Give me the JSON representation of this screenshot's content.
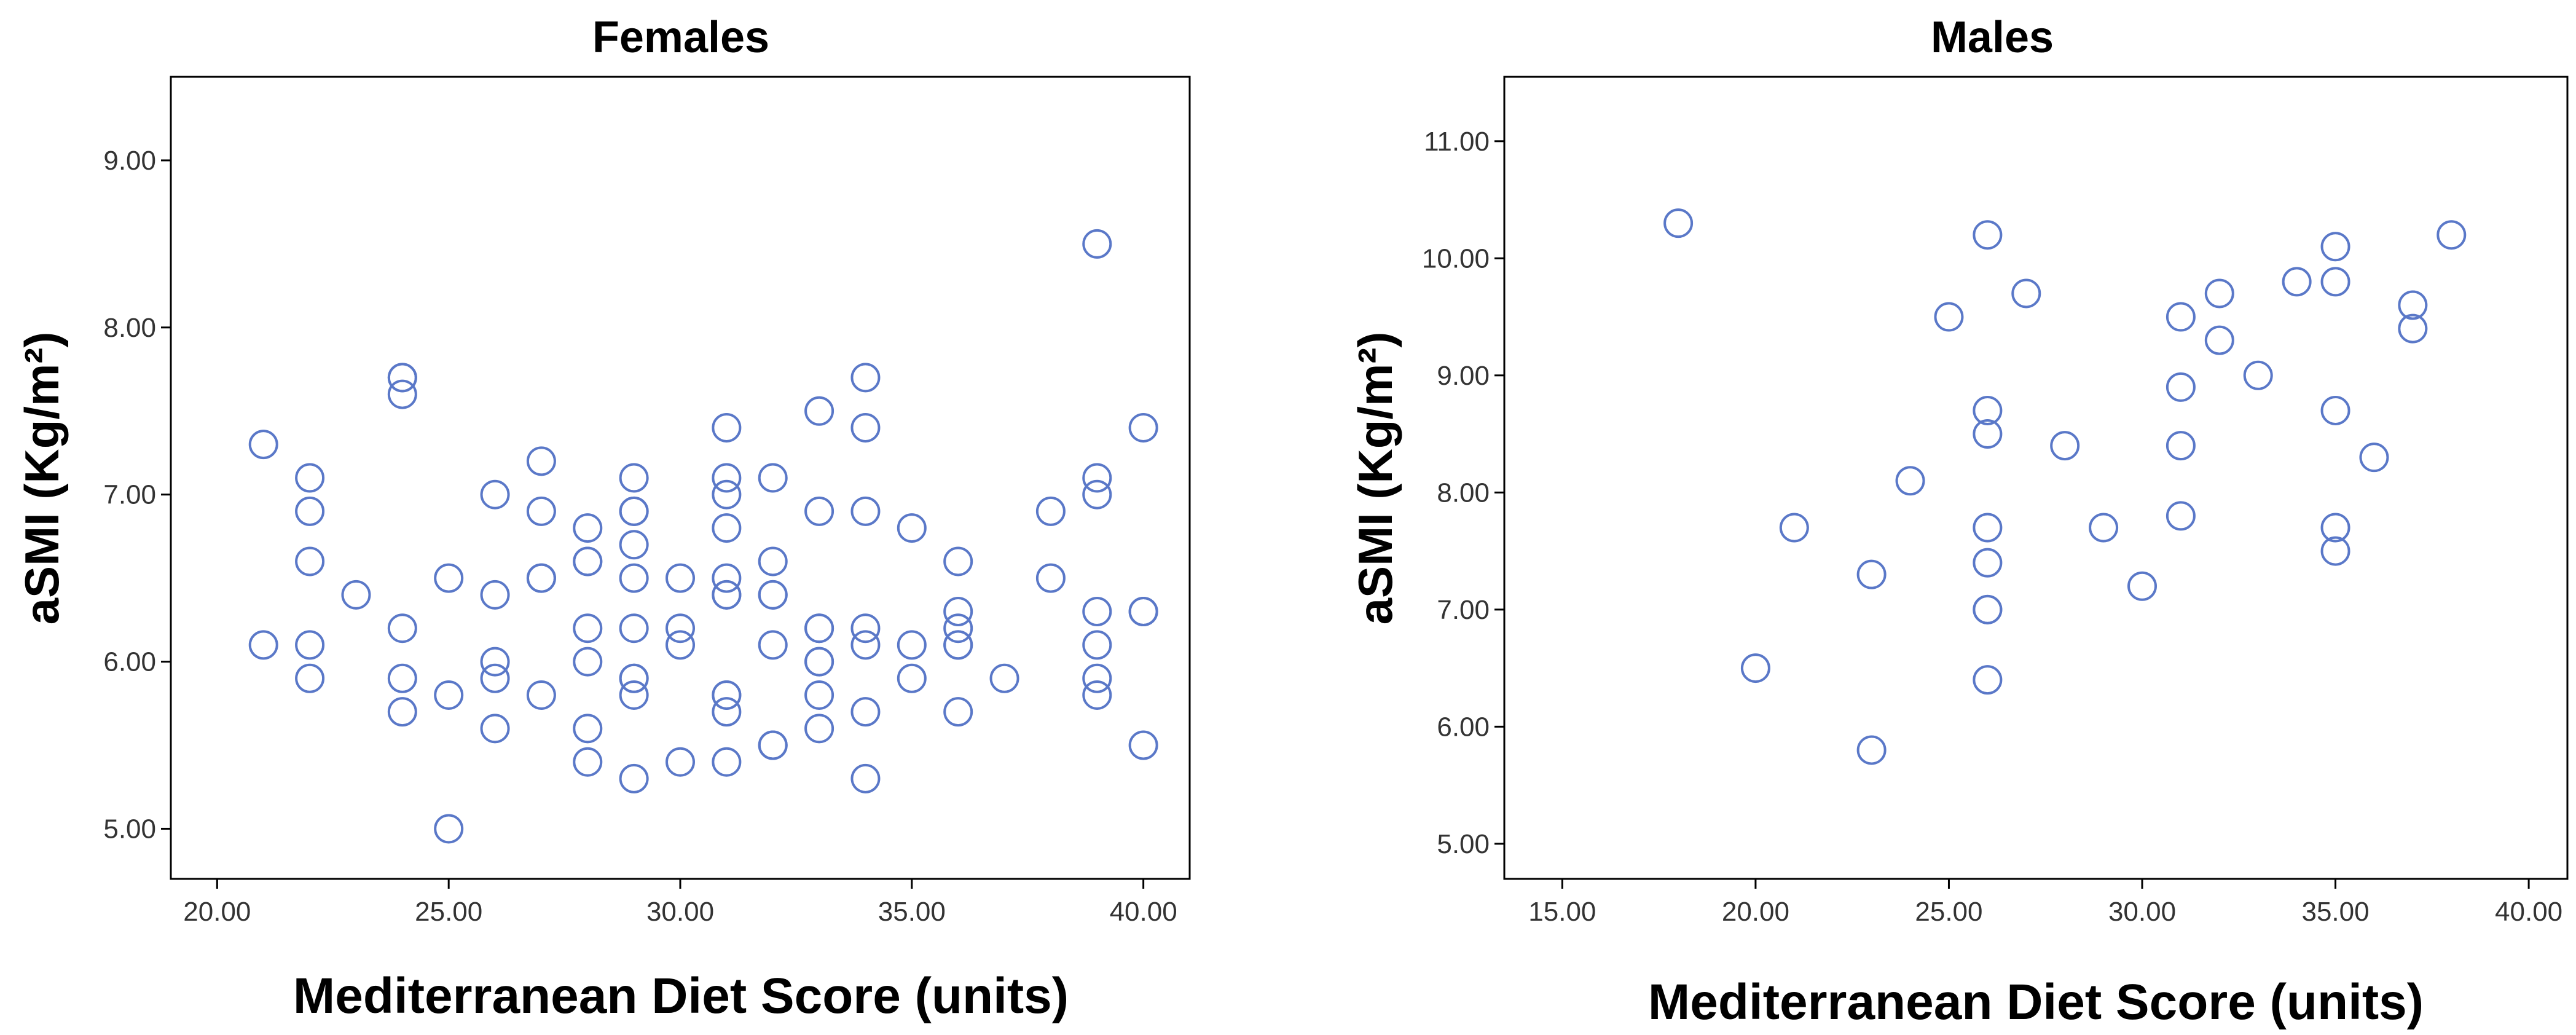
{
  "colors": {
    "marker": "#5a78c8",
    "frame": "#000000",
    "tick_text": "#333333"
  },
  "chart_data": [
    {
      "type": "scatter",
      "title": "Females",
      "xlabel": "Mediterranean Diet Score (units)",
      "ylabel": "aSMI (Kg/m²)",
      "xlim": [
        19.0,
        41.0
      ],
      "ylim": [
        4.7,
        9.5
      ],
      "xticks": [
        20,
        25,
        30,
        35,
        40
      ],
      "yticks": [
        5,
        6,
        7,
        8,
        9
      ],
      "xtick_labels": [
        "20.00",
        "25.00",
        "30.00",
        "35.00",
        "40.00"
      ],
      "ytick_labels": [
        "5.00",
        "6.00",
        "7.00",
        "8.00",
        "9.00"
      ],
      "grid": false,
      "marker": "open-circle",
      "points": [
        [
          21,
          7.3
        ],
        [
          21,
          6.1
        ],
        [
          22,
          7.1
        ],
        [
          22,
          6.9
        ],
        [
          22,
          6.6
        ],
        [
          22,
          6.1
        ],
        [
          22,
          5.9
        ],
        [
          23,
          6.4
        ],
        [
          24,
          7.7
        ],
        [
          24,
          7.7
        ],
        [
          24,
          7.6
        ],
        [
          24,
          6.2
        ],
        [
          24,
          5.9
        ],
        [
          24,
          5.7
        ],
        [
          25,
          6.5
        ],
        [
          25,
          5.8
        ],
        [
          25,
          5.0
        ],
        [
          26,
          7.0
        ],
        [
          26,
          6.4
        ],
        [
          26,
          6.0
        ],
        [
          26,
          5.9
        ],
        [
          26,
          5.6
        ],
        [
          27,
          7.2
        ],
        [
          27,
          6.9
        ],
        [
          27,
          6.5
        ],
        [
          27,
          6.5
        ],
        [
          27,
          5.8
        ],
        [
          28,
          6.8
        ],
        [
          28,
          6.6
        ],
        [
          28,
          6.6
        ],
        [
          28,
          6.2
        ],
        [
          28,
          6.0
        ],
        [
          28,
          5.6
        ],
        [
          28,
          5.4
        ],
        [
          29,
          7.1
        ],
        [
          29,
          6.9
        ],
        [
          29,
          6.9
        ],
        [
          29,
          6.7
        ],
        [
          29,
          6.5
        ],
        [
          29,
          6.2
        ],
        [
          29,
          5.9
        ],
        [
          29,
          5.9
        ],
        [
          29,
          5.8
        ],
        [
          29,
          5.3
        ],
        [
          30,
          6.5
        ],
        [
          30,
          6.2
        ],
        [
          30,
          6.1
        ],
        [
          30,
          5.4
        ],
        [
          31,
          7.4
        ],
        [
          31,
          7.1
        ],
        [
          31,
          7.0
        ],
        [
          31,
          6.8
        ],
        [
          31,
          6.5
        ],
        [
          31,
          6.4
        ],
        [
          31,
          6.4
        ],
        [
          31,
          5.8
        ],
        [
          31,
          5.8
        ],
        [
          31,
          5.7
        ],
        [
          31,
          5.4
        ],
        [
          32,
          7.1
        ],
        [
          32,
          6.6
        ],
        [
          32,
          6.4
        ],
        [
          32,
          6.4
        ],
        [
          32,
          6.1
        ],
        [
          32,
          5.5
        ],
        [
          32,
          5.5
        ],
        [
          33,
          7.5
        ],
        [
          33,
          6.9
        ],
        [
          33,
          6.2
        ],
        [
          33,
          6.2
        ],
        [
          33,
          6.0
        ],
        [
          33,
          6.0
        ],
        [
          33,
          5.8
        ],
        [
          33,
          5.6
        ],
        [
          34,
          7.7
        ],
        [
          34,
          7.4
        ],
        [
          34,
          6.9
        ],
        [
          34,
          6.2
        ],
        [
          34,
          6.1
        ],
        [
          34,
          5.7
        ],
        [
          34,
          5.3
        ],
        [
          35,
          6.8
        ],
        [
          35,
          6.1
        ],
        [
          35,
          5.9
        ],
        [
          36,
          6.6
        ],
        [
          36,
          6.3
        ],
        [
          36,
          6.2
        ],
        [
          36,
          6.1
        ],
        [
          36,
          6.1
        ],
        [
          36,
          5.7
        ],
        [
          37,
          5.9
        ],
        [
          38,
          6.9
        ],
        [
          38,
          6.5
        ],
        [
          39,
          8.5
        ],
        [
          39,
          7.1
        ],
        [
          39,
          7.0
        ],
        [
          39,
          6.3
        ],
        [
          39,
          6.1
        ],
        [
          39,
          5.9
        ],
        [
          39,
          5.8
        ],
        [
          40,
          7.4
        ],
        [
          40,
          6.3
        ],
        [
          40,
          6.3
        ],
        [
          40,
          5.5
        ]
      ]
    },
    {
      "type": "scatter",
      "title": "Males",
      "xlabel": "Mediterranean Diet Score (units)",
      "ylabel": "aSMI (Kg/m²)",
      "xlim": [
        13.5,
        41.0
      ],
      "ylim": [
        4.7,
        11.55
      ],
      "xticks": [
        15,
        20,
        25,
        30,
        35,
        40
      ],
      "yticks": [
        5,
        6,
        7,
        8,
        9,
        10,
        11
      ],
      "xtick_labels": [
        "15.00",
        "20.00",
        "25.00",
        "30.00",
        "35.00",
        "40.00"
      ],
      "ytick_labels": [
        "5.00",
        "6.00",
        "7.00",
        "8.00",
        "9.00",
        "10.00",
        "11.00"
      ],
      "grid": false,
      "marker": "open-circle",
      "points": [
        [
          18,
          10.3
        ],
        [
          20,
          6.5
        ],
        [
          21,
          7.7
        ],
        [
          23,
          7.3
        ],
        [
          23,
          5.8
        ],
        [
          24,
          8.1
        ],
        [
          25,
          9.5
        ],
        [
          26,
          10.2
        ],
        [
          26,
          8.7
        ],
        [
          26,
          8.5
        ],
        [
          26,
          7.7
        ],
        [
          26,
          7.4
        ],
        [
          26,
          7.0
        ],
        [
          26,
          7.0
        ],
        [
          26,
          6.4
        ],
        [
          27,
          9.7
        ],
        [
          28,
          8.4
        ],
        [
          29,
          7.7
        ],
        [
          30,
          7.2
        ],
        [
          31,
          9.5
        ],
        [
          31,
          8.9
        ],
        [
          31,
          8.4
        ],
        [
          31,
          7.8
        ],
        [
          32,
          9.7
        ],
        [
          32,
          9.3
        ],
        [
          33,
          9.0
        ],
        [
          34,
          9.8
        ],
        [
          35,
          10.1
        ],
        [
          35,
          9.8
        ],
        [
          35,
          8.7
        ],
        [
          35,
          7.7
        ],
        [
          35,
          7.5
        ],
        [
          36,
          8.3
        ],
        [
          37,
          9.6
        ],
        [
          37,
          9.4
        ],
        [
          38,
          10.2
        ]
      ]
    }
  ]
}
